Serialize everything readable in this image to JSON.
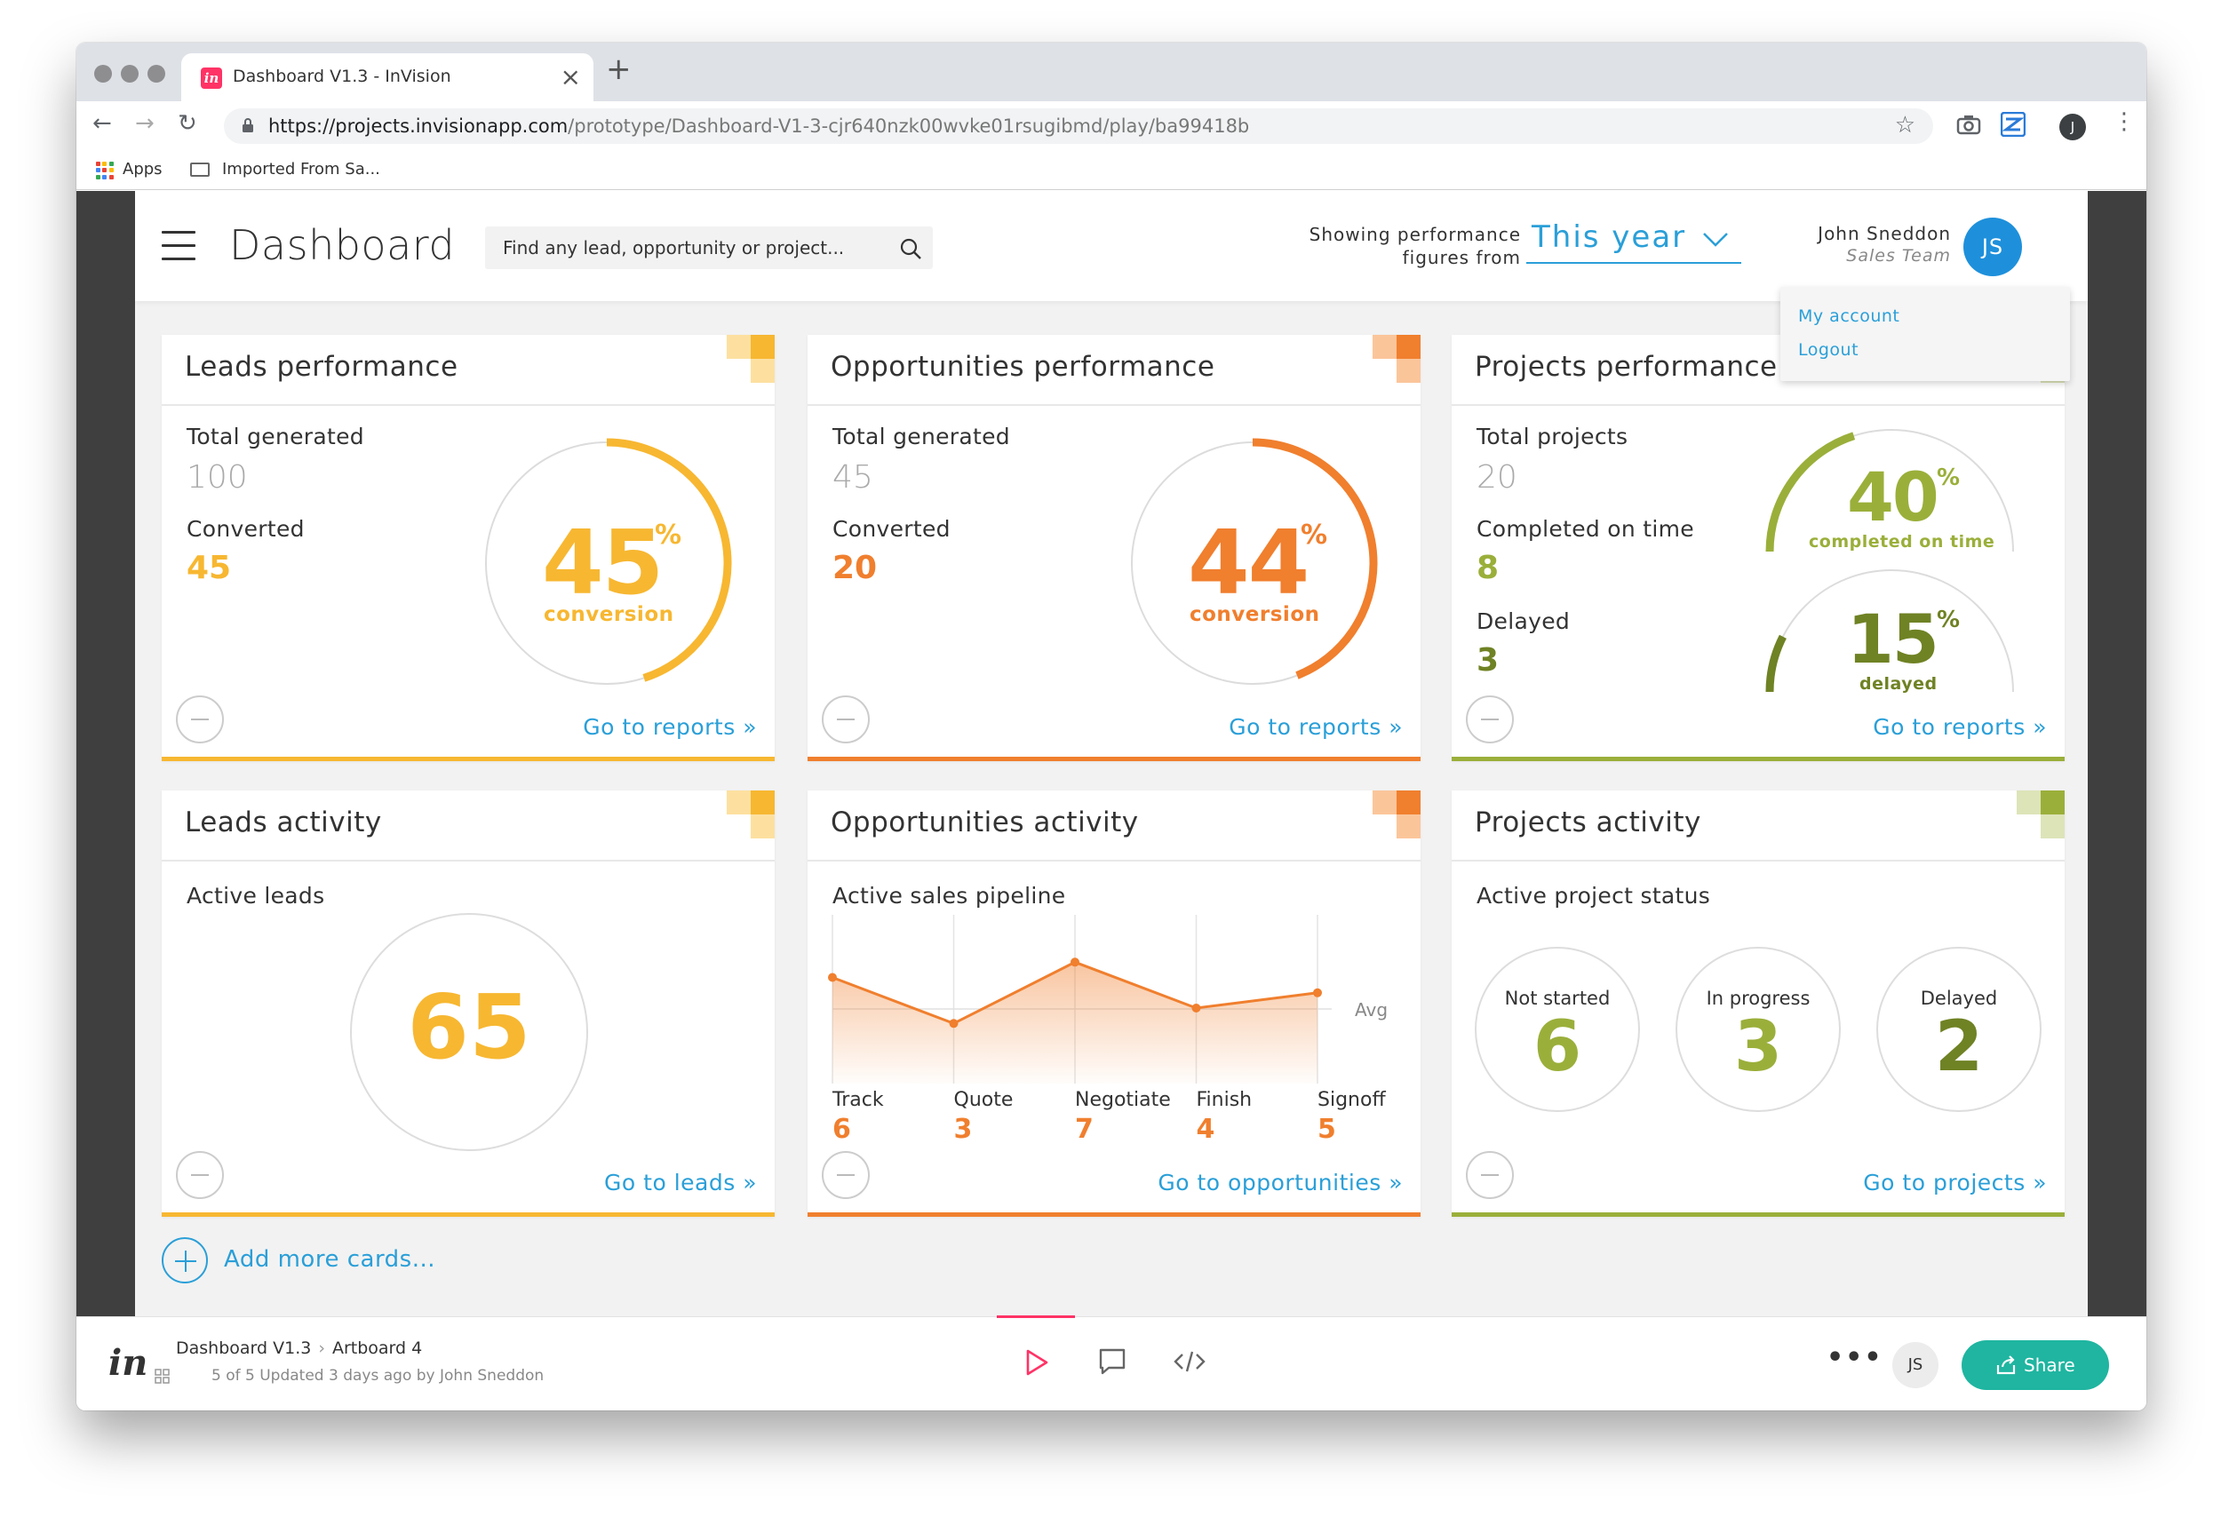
{
  "browser": {
    "tab_title": "Dashboard V1.3 - InVision",
    "tab_favicon_text": "in",
    "url_host": "https://projects.invisionapp.com",
    "url_path": "/prototype/Dashboard-V1-3-cjr640nzk00wvke01rsugibmd/play/ba99418b",
    "bookmarks": [
      {
        "label": "Apps"
      },
      {
        "label": "Imported From Sa..."
      }
    ],
    "profile_initial": "J"
  },
  "header": {
    "title": "Dashboard",
    "search_placeholder": "Find any lead, opportunity or project...",
    "performance_label_line1": "Showing performance",
    "performance_label_line2": "figures from",
    "period": "This year",
    "user_name": "John Sneddon",
    "user_role": "Sales Team",
    "avatar_initials": "JS"
  },
  "user_menu": {
    "items": [
      "My account",
      "Logout"
    ]
  },
  "colors": {
    "leads": "#f7b731",
    "opportunities": "#f07f2e",
    "projects": "#9aaf3a",
    "projects_dark": "#6f8224",
    "link": "#2a9fd8"
  },
  "cards": {
    "leads_performance": {
      "title": "Leads performance",
      "total_label": "Total generated",
      "total_value": "100",
      "converted_label": "Converted",
      "converted_value": "45",
      "percent": "45",
      "percent_sign": "%",
      "percent_label": "conversion",
      "progress": 0.45,
      "link": "Go to reports »"
    },
    "opportunities_performance": {
      "title": "Opportunities performance",
      "total_label": "Total generated",
      "total_value": "45",
      "converted_label": "Converted",
      "converted_value": "20",
      "percent": "44",
      "percent_sign": "%",
      "percent_label": "conversion",
      "progress": 0.44,
      "link": "Go to reports »"
    },
    "projects_performance": {
      "title": "Projects performance",
      "total_label": "Total projects",
      "total_value": "20",
      "ontime_label": "Completed on time",
      "ontime_value": "8",
      "delayed_label": "Delayed",
      "delayed_value": "3",
      "ontime_percent": "40",
      "ontime_percent_label": "completed on time",
      "ontime_progress": 0.4,
      "delayed_percent": "15",
      "delayed_percent_label": "delayed",
      "delayed_progress": 0.15,
      "percent_sign": "%",
      "link": "Go to reports »"
    },
    "leads_activity": {
      "title": "Leads activity",
      "label": "Active leads",
      "value": "65",
      "link": "Go to leads »"
    },
    "opportunities_activity": {
      "title": "Opportunities activity",
      "label": "Active sales pipeline",
      "avg_label": "Avg",
      "link": "Go to opportunities »"
    },
    "projects_activity": {
      "title": "Projects activity",
      "label": "Active project status",
      "statuses": [
        {
          "label": "Not started",
          "value": "6"
        },
        {
          "label": "In progress",
          "value": "3"
        },
        {
          "label": "Delayed",
          "value": "2"
        }
      ],
      "link": "Go to projects »"
    }
  },
  "chart_data": {
    "type": "area",
    "categories": [
      "Track",
      "Quote",
      "Negotiate",
      "Finish",
      "Signoff"
    ],
    "values": [
      6,
      3,
      7,
      4,
      5
    ],
    "title": "Active sales pipeline",
    "annotations": [
      "Avg"
    ]
  },
  "add_cards": "Add more cards...",
  "invision": {
    "logo": "in",
    "project": "Dashboard V1.3",
    "artboard": "Artboard 4",
    "meta": "5 of 5  Updated 3 days ago by John Sneddon",
    "user_initials": "JS",
    "share_label": "Share"
  }
}
